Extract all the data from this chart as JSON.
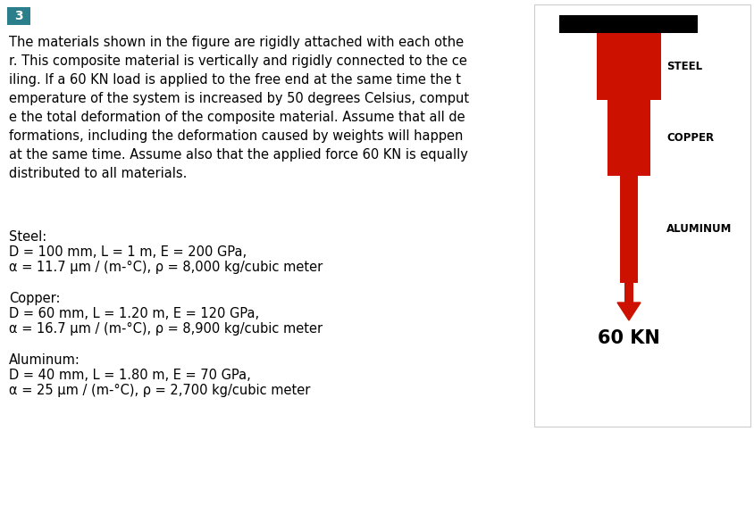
{
  "bg_color": "#ffffff",
  "number_label": "3",
  "number_bg": "#2a7f8a",
  "number_color": "#ffffff",
  "number_fontsize": 10,
  "paragraph": "The materials shown in the figure are rigidly attached with each othe\nr. This composite material is vertically and rigidly connected to the ce\niling. If a 60 KN load is applied to the free end at the same time the t\nemperature of the system is increased by 50 degrees Celsius, comput\ne the total deformation of the composite material. Assume that all de\nformations, including the deformation caused by weights will happen\nat the same time. Assume also that the applied force 60 KN is equally\ndistributed to all materials.",
  "para_fontsize": 10.5,
  "steel_title": "Steel:",
  "steel_line1": "D = 100 mm, L = 1 m, E = 200 GPa,",
  "steel_line2": "α = 11.7 μm / (m-°C), ρ = 8,000 kg/cubic meter",
  "copper_title": "Copper:",
  "copper_line1": "D = 60 mm, L = 1.20 m, E = 120 GPa,",
  "copper_line2": "α = 16.7 μm / (m-°C), ρ = 8,900 kg/cubic meter",
  "aluminum_title": "Aluminum:",
  "aluminum_line1": "D = 40 mm, L = 1.80 m, E = 70 GPa,",
  "aluminum_line2": "α = 25 μm / (m-°C), ρ = 2,700 kg/cubic meter",
  "material_fontsize": 10.5,
  "diagram_bg": "#ffffff",
  "diagram_border": "#cccccc",
  "red_color": "#cc1100",
  "black_color": "#000000",
  "label_steel": "STEEL",
  "label_copper": "COPPER",
  "label_aluminum": "ALUMINUM",
  "label_force": "60 KN",
  "diagram_label_fontsize": 8.5,
  "force_label_fontsize": 15
}
